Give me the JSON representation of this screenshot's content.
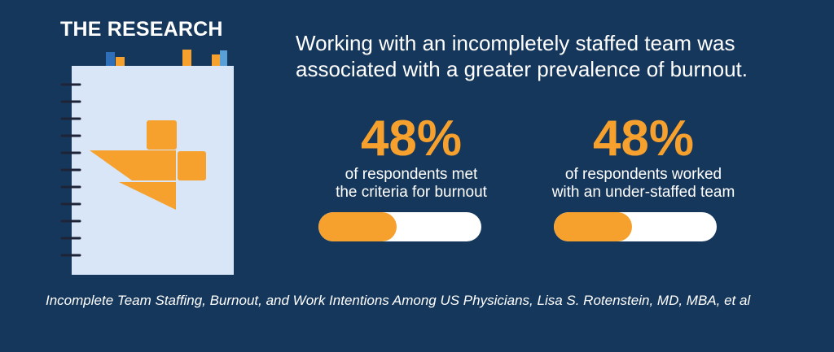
{
  "heading": "THE RESEARCH",
  "headline": "Working with an incompletely staffed team was associated with a greater prevalence of burnout.",
  "stats": [
    {
      "value": "48%",
      "description_line1": "of respondents met",
      "description_line2": "the criteria for burnout",
      "progress": 0.48
    },
    {
      "value": "48%",
      "description_line1": "of respondents worked",
      "description_line2": "with an under-staffed team",
      "progress": 0.48
    }
  ],
  "citation": "Incomplete Team Staffing, Burnout, and Work Intentions Among US Physicians, Lisa S. Rotenstein, MD, MBA, et al",
  "colors": {
    "background": "#16375c",
    "accent": "#f6a02d",
    "notebook": "#d9e6f7",
    "tab_blue": "#2f6fb9",
    "text": "#ffffff"
  },
  "icons": [
    "notebook-icon",
    "logo-icon"
  ]
}
